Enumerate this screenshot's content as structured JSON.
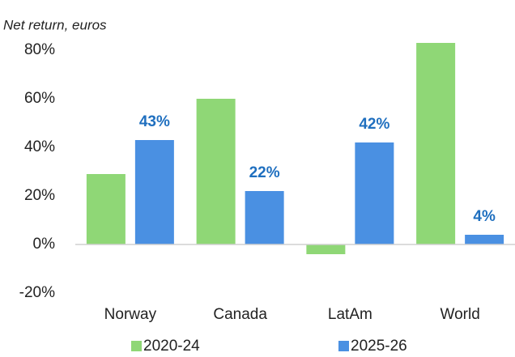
{
  "chart_data": {
    "type": "bar",
    "title": "Net  return, euros",
    "categories": [
      "Norway",
      "Canada",
      "LatAm",
      "World"
    ],
    "series": [
      {
        "name": "2020-24",
        "color": "#8fd776",
        "values": [
          29,
          60,
          -4,
          83
        ]
      },
      {
        "name": "2025-26",
        "color": "#4a90e2",
        "values": [
          43,
          22,
          42,
          4
        ],
        "value_labels": [
          "43%",
          "22%",
          "42%",
          "4%"
        ]
      }
    ],
    "ylim": [
      -20,
      90
    ],
    "yticks": [
      {
        "value": -20,
        "label": "-20%"
      },
      {
        "value": 0,
        "label": "0%"
      },
      {
        "value": 20,
        "label": "20%"
      },
      {
        "value": 40,
        "label": "40%"
      },
      {
        "value": 60,
        "label": "60%"
      },
      {
        "value": 80,
        "label": "80%"
      }
    ],
    "grid": false,
    "legend": "bottom"
  }
}
